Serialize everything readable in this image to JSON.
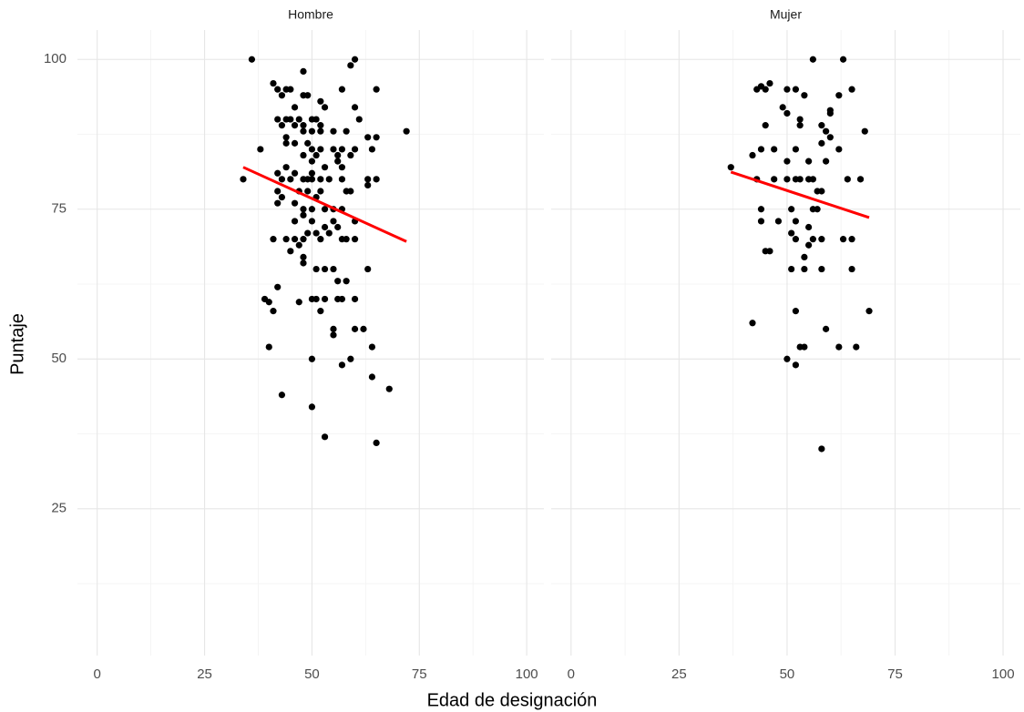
{
  "xlabel": "Edad de designación",
  "ylabel": "Puntaje",
  "chart_data": [
    {
      "type": "scatter",
      "title": "Hombre",
      "color": "#000000",
      "xlim": [
        -4.6,
        104
      ],
      "ylim": [
        0.5,
        104.9
      ],
      "xticks": [
        0,
        25,
        50,
        75,
        100
      ],
      "yticks": [
        25,
        50,
        75,
        100
      ],
      "grid": true,
      "x": [
        36,
        60,
        59,
        48,
        41,
        42,
        44,
        45,
        57,
        65,
        43,
        48,
        49,
        52,
        46,
        53,
        60,
        42,
        44,
        45,
        47,
        50,
        51,
        61,
        43,
        46,
        48,
        52,
        52,
        44,
        48,
        50,
        55,
        58,
        63,
        65,
        72,
        44,
        46,
        49,
        50,
        52,
        55,
        57,
        60,
        38,
        64,
        48,
        51,
        56,
        59,
        56,
        50,
        44,
        53,
        57,
        42,
        46,
        50,
        43,
        45,
        48,
        49,
        50,
        52,
        54,
        57,
        63,
        65,
        34,
        42,
        47,
        49,
        52,
        58,
        59,
        63,
        43,
        51,
        42,
        46,
        48,
        50,
        53,
        55,
        57,
        48,
        46,
        50,
        55,
        60,
        53,
        56,
        49,
        51,
        54,
        41,
        44,
        46,
        48,
        52,
        57,
        58,
        60,
        47,
        45,
        48,
        48,
        51,
        53,
        55,
        63,
        42,
        56,
        58,
        39,
        40,
        47,
        50,
        51,
        53,
        56,
        57,
        60,
        41,
        52,
        60,
        62,
        55,
        55,
        40,
        64,
        50,
        59,
        57,
        64,
        68,
        43,
        50,
        53,
        65
      ],
      "y": [
        100,
        100,
        99,
        98,
        96,
        95,
        95,
        95,
        95,
        95,
        94,
        94,
        94,
        93,
        92,
        92,
        92,
        90,
        90,
        90,
        90,
        90,
        90,
        90,
        89,
        89,
        89,
        89,
        88,
        87,
        88,
        88,
        88,
        88,
        87,
        87,
        88,
        86,
        86,
        86,
        85,
        85,
        85,
        85,
        85,
        85,
        85,
        84,
        84,
        84,
        84,
        83,
        83,
        82,
        82,
        82,
        81,
        81,
        81,
        80,
        80,
        80,
        80,
        80,
        80,
        80,
        80,
        80,
        80,
        80,
        78,
        78,
        78,
        78,
        78,
        78,
        79,
        77,
        77,
        76,
        76,
        75,
        75,
        75,
        75,
        75,
        74,
        73,
        73,
        73,
        73,
        72,
        72,
        71,
        71,
        71,
        70,
        70,
        70,
        70,
        70,
        70,
        70,
        70,
        69,
        68,
        67,
        66,
        65,
        65,
        65,
        65,
        62,
        63,
        63,
        60,
        59.5,
        59.5,
        60,
        60,
        60,
        60,
        60,
        60,
        58,
        58,
        55,
        55,
        55,
        54,
        52,
        52,
        50,
        50,
        49,
        47,
        45,
        44,
        42,
        37,
        36
      ],
      "fit": {
        "color": "#ff0000",
        "x": [
          34,
          72
        ],
        "y": [
          82,
          69.6
        ]
      }
    },
    {
      "type": "scatter",
      "title": "Mujer",
      "color": "#000000",
      "xlim": [
        -4.6,
        104
      ],
      "ylim": [
        0.5,
        104.9
      ],
      "xticks": [
        0,
        25,
        50,
        75,
        100
      ],
      "yticks": [
        25,
        50,
        75,
        100
      ],
      "grid": true,
      "x": [
        56,
        63,
        43,
        44,
        45,
        46,
        50,
        52,
        54,
        65,
        62,
        49,
        50,
        53,
        60,
        60,
        45,
        53,
        58,
        59,
        60,
        68,
        42,
        47,
        52,
        58,
        62,
        44,
        47,
        50,
        52,
        53,
        55,
        56,
        57,
        58,
        64,
        67,
        37,
        43,
        50,
        55,
        59,
        44,
        56,
        51,
        57,
        44,
        48,
        52,
        55,
        51,
        52,
        56,
        58,
        63,
        65,
        46,
        45,
        55,
        54,
        51,
        54,
        58,
        65,
        42,
        52,
        59,
        69,
        53,
        54,
        62,
        66,
        50,
        52,
        58
      ],
      "y": [
        100,
        100,
        95,
        95.5,
        95,
        96,
        95,
        95,
        94,
        95,
        94,
        92,
        91,
        90,
        91,
        91.5,
        89,
        89,
        89,
        88,
        87,
        88,
        84,
        85,
        85,
        86,
        85,
        85,
        80,
        80,
        80,
        80,
        80,
        80,
        78,
        78,
        80,
        80,
        82,
        80,
        83,
        83,
        83,
        75,
        75,
        75,
        75,
        73,
        73,
        73,
        72,
        71,
        70,
        70,
        70,
        70,
        70,
        68,
        68,
        69,
        67,
        65,
        65,
        65,
        65,
        56,
        58,
        55,
        58,
        52,
        52,
        52,
        52,
        50,
        49,
        35
      ],
      "fit": {
        "color": "#ff0000",
        "x": [
          37,
          69
        ],
        "y": [
          81.2,
          73.6
        ]
      }
    }
  ]
}
